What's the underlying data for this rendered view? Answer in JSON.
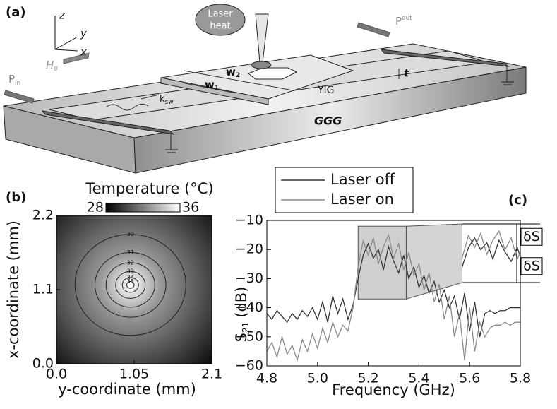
{
  "diagram": {
    "label": "(a)",
    "axis_z": "z",
    "axis_y": "y",
    "axis_x": "x",
    "field": {
      "text": "H",
      "sub": "0"
    },
    "laser": [
      "Laser",
      "heat"
    ],
    "p_out": {
      "text": "P",
      "sub": "out"
    },
    "p_in": {
      "text": "P",
      "sub": "in"
    },
    "w2": {
      "text": "w",
      "sub": "2"
    },
    "w1": {
      "text": "w",
      "sub": "1"
    },
    "t": "t",
    "k": {
      "text": "k",
      "sub": "sw"
    },
    "film": "YIG",
    "substrate": "GGG"
  },
  "chart_data": [
    {
      "type": "contour",
      "label": "(b)",
      "colorbar_label": "Temperature (°C)",
      "clim": [
        28,
        36
      ],
      "clim_colors": [
        "#000000",
        "#ffffff"
      ],
      "xlabel": "y-coordinate (mm)",
      "ylabel": "x-coordinate (mm)",
      "xlim": [
        0,
        2.1
      ],
      "ylim": [
        0,
        2.2
      ],
      "xticks": [
        {
          "value": 0,
          "label": "0.0"
        },
        1.05,
        2.1
      ],
      "yticks": [
        {
          "value": 0,
          "label": "0.0"
        },
        1.1,
        2.2
      ],
      "center": [
        1.0,
        1.17
      ],
      "contours": [
        {
          "level": 30,
          "radius": 0.75
        },
        {
          "level": 31,
          "radius": 0.48
        },
        {
          "level": 32,
          "radius": 0.33
        },
        {
          "level": 33,
          "radius": 0.2
        },
        {
          "level": 34,
          "radius": 0.11
        },
        {
          "level": 35,
          "radius": 0.05
        }
      ]
    },
    {
      "type": "line",
      "label": "(c)",
      "xlabel": "Frequency (GHz)",
      "ylabel": {
        "text": "S",
        "sub": "21",
        "unit": "(dB)"
      },
      "xlim": [
        4.8,
        5.8
      ],
      "ylim": [
        -60,
        -10
      ],
      "xticks": [
        4.8,
        {
          "value": 5,
          "label": "5.0"
        },
        5.2,
        5.4,
        5.6,
        5.8
      ],
      "yticks": [
        {
          "value": -60,
          "label": "−60"
        },
        {
          "value": -50,
          "label": "−50"
        },
        {
          "value": -40,
          "label": "−40"
        },
        {
          "value": -30,
          "label": "−30"
        },
        {
          "value": -20,
          "label": "−20"
        },
        {
          "value": -10,
          "label": "−10"
        }
      ],
      "legend": "top-left",
      "x": [
        4.8,
        4.82,
        4.84,
        4.86,
        4.88,
        4.9,
        4.92,
        4.94,
        4.96,
        4.98,
        5.0,
        5.02,
        5.04,
        5.06,
        5.08,
        5.1,
        5.12,
        5.14,
        5.16,
        5.18,
        5.2,
        5.22,
        5.24,
        5.26,
        5.28,
        5.3,
        5.32,
        5.34,
        5.36,
        5.38,
        5.4,
        5.42,
        5.44,
        5.46,
        5.48,
        5.5,
        5.52,
        5.54,
        5.56,
        5.58,
        5.6,
        5.62,
        5.64,
        5.66,
        5.68,
        5.7,
        5.72,
        5.74,
        5.76,
        5.78,
        5.8
      ],
      "series": [
        {
          "name": "Laser off",
          "color": "#333333",
          "values": [
            -42,
            -44,
            -41,
            -43,
            -45,
            -42,
            -44,
            -41,
            -43,
            -40,
            -44,
            -38,
            -45,
            -36,
            -42,
            -37,
            -44,
            -39,
            -30,
            -22,
            -18,
            -23,
            -20,
            -27,
            -19,
            -24,
            -28,
            -22,
            -30,
            -26,
            -33,
            -29,
            -35,
            -31,
            -38,
            -34,
            -40,
            -36,
            -44,
            -35,
            -48,
            -38,
            -50,
            -42,
            -41,
            -42,
            -41,
            -41,
            -40,
            -40,
            -40
          ]
        },
        {
          "name": "Laser on",
          "color": "#8a8a8a",
          "values": [
            -55,
            -52,
            -57,
            -50,
            -56,
            -53,
            -58,
            -51,
            -55,
            -49,
            -54,
            -47,
            -52,
            -45,
            -50,
            -46,
            -48,
            -40,
            -26,
            -17,
            -22,
            -16,
            -25,
            -19,
            -15,
            -23,
            -18,
            -27,
            -21,
            -29,
            -25,
            -34,
            -28,
            -38,
            -32,
            -44,
            -36,
            -50,
            -42,
            -58,
            -40,
            -55,
            -45,
            -50,
            -47,
            -46,
            -46,
            -45,
            -46,
            -45,
            -45
          ]
        }
      ],
      "zoom": {
        "x": [
          5.16,
          5.35
        ],
        "y": [
          -37,
          -12
        ]
      },
      "annotations": [
        "δS",
        "δS"
      ]
    }
  ]
}
